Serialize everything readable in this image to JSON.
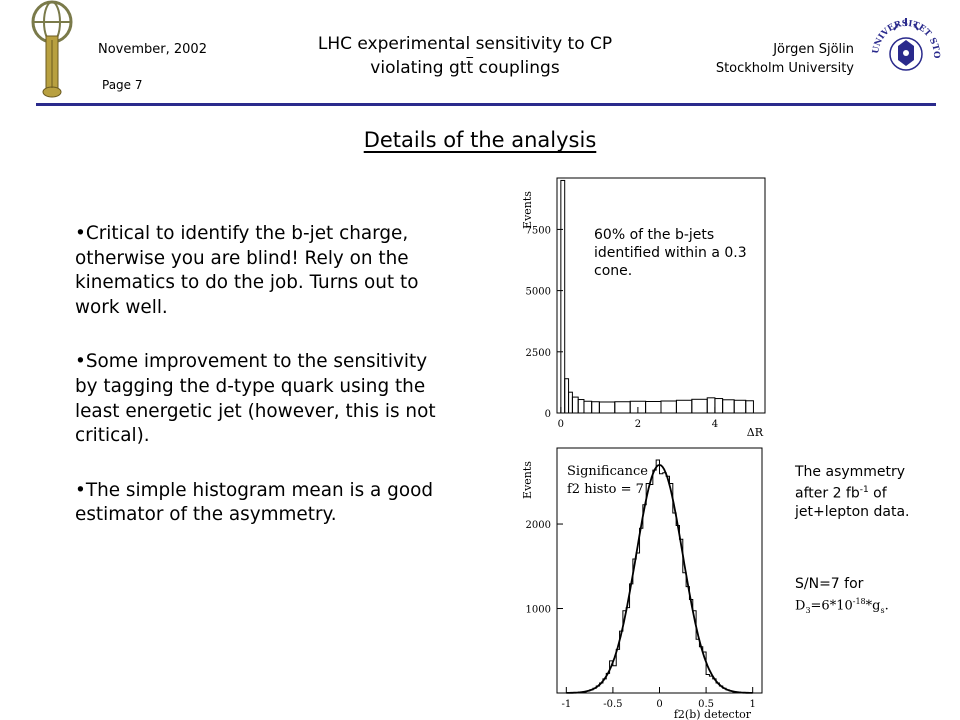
{
  "header": {
    "date": "November, 2002",
    "page": "Page 7",
    "title_line1": "LHC experimental sensitivity to CP",
    "title_line2_pre": "violating g",
    "title_line2_ttbar_t": "t",
    "title_line2_ttbar_tbar": "t",
    "title_line2_post": " couplings",
    "author": "Jörgen Sjölin",
    "affiliation": "Stockholm University",
    "left_logo": "atlas-logo",
    "right_logo": "stockholm-university-seal",
    "seal_text": "UNIVERSITET STOCKHOLMS"
  },
  "slide": {
    "title": "Details of the analysis",
    "bullets": [
      "•Critical to identify the b-jet charge, otherwise you are blind! Rely on the kinematics to do the job. Turns out to work well.",
      "•Some improvement to the sensitivity by tagging the d-type quark using the least energetic jet (however, this is not critical).",
      "•The simple histogram mean is a good estimator of the asymmetry."
    ]
  },
  "notes": {
    "cone_text": "60% of the b-jets identified within a 0.3 cone.",
    "asym_line1": "The asymmetry",
    "asym_line2_pre": "after 2 fb",
    "asym_line2_sup": "-1",
    "asym_line2_post": " of",
    "asym_line3": "jet+lepton data.",
    "sn_line1": "S/N=7 for",
    "sn_line2_D": "D",
    "sn_line2_sub": "3",
    "sn_line2_mid": "=6*10",
    "sn_line2_sup": "-18",
    "sn_line2_post": "*g",
    "sn_line2_gsub": "s",
    "sn_line2_end": "."
  },
  "chart_data": [
    {
      "type": "bar",
      "ylabel": "Events",
      "xlabel": "ΔR",
      "xlim": [
        -0.1,
        5.3
      ],
      "ylim": [
        0,
        9600
      ],
      "x_ticks": [
        "0",
        "2",
        "4"
      ],
      "y_ticks": [
        "0",
        "2500",
        "5000",
        "7500"
      ],
      "bin_edges": [
        0.0,
        0.1,
        0.2,
        0.3,
        0.45,
        0.6,
        0.8,
        1.0,
        1.4,
        1.8,
        2.2,
        2.6,
        3.0,
        3.4,
        3.8,
        4.0,
        4.2,
        4.5,
        4.8,
        5.0
      ],
      "values": [
        9500,
        1400,
        850,
        650,
        550,
        480,
        460,
        450,
        460,
        480,
        470,
        490,
        520,
        560,
        620,
        590,
        540,
        520,
        500
      ]
    },
    {
      "type": "bar",
      "ylabel": "Events",
      "xlabel": "f2(b) detector",
      "xlim": [
        -1.1,
        1.1
      ],
      "ylim": [
        0,
        2900
      ],
      "x_ticks": [
        "-1",
        "-0.5",
        "0",
        "0.5",
        "1"
      ],
      "y_ticks": [
        "1000",
        "2000"
      ],
      "annotation_line1": "Significance",
      "annotation_line2": "f2 histo = 7",
      "histogram_mean": 0.0,
      "histogram_sigma": 0.25,
      "histogram_peak": 2700,
      "fit": "gaussian"
    }
  ]
}
